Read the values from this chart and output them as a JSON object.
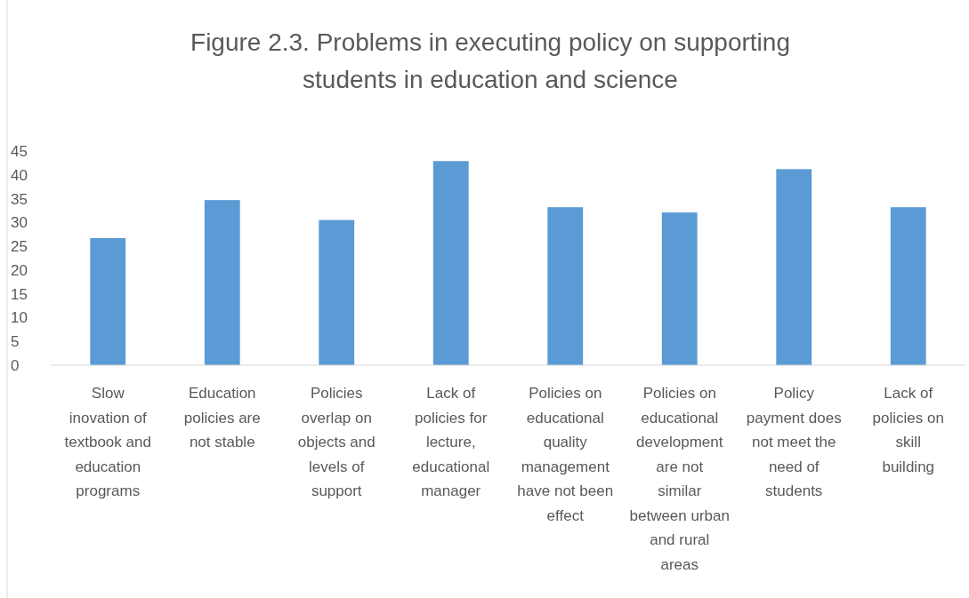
{
  "chart_data": {
    "type": "bar",
    "title": "Figure 2.3. Problems in executing policy on supporting students in education and science",
    "categories": [
      "Slow inovation of textbook and education programs",
      "Education policies are not stable",
      "Policies overlap on objects and levels of support",
      "Lack of policies for lecture, educational manager",
      "Policies on educational quality management have not been effect",
      "Policies on educational development are not similar between urban and rural areas",
      "Policy payment does not meet the need of students",
      "Lack of policies on skill building"
    ],
    "values": [
      26.7,
      34.7,
      30.5,
      42.9,
      33.2,
      32.1,
      41.2,
      33.2
    ],
    "color": "#5b9bd5",
    "ylim": [
      0,
      45
    ],
    "yticks": [
      0,
      5,
      10,
      15,
      20,
      25,
      30,
      35,
      40,
      45
    ],
    "grid": false
  }
}
